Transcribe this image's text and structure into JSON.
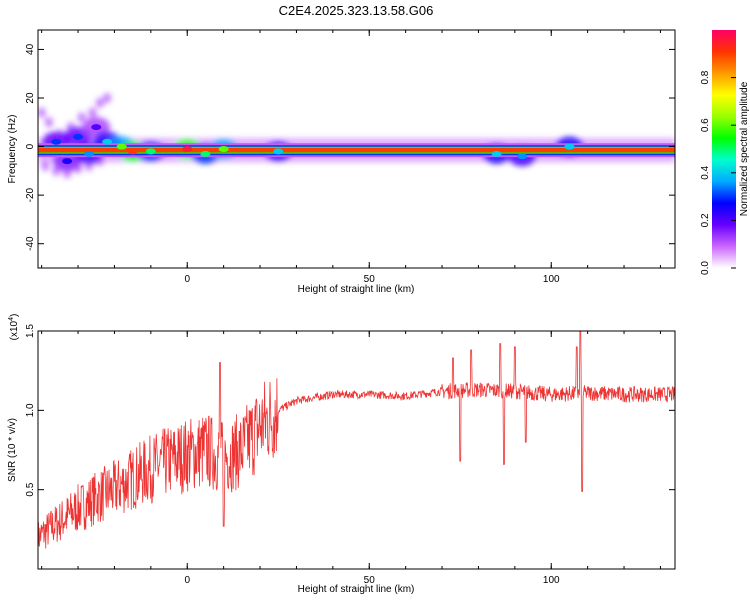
{
  "title": "C2E4.2025.323.13.58.G06",
  "chart_data": [
    {
      "type": "heatmap",
      "xlabel": "Height of straight line (km)",
      "ylabel": "Frequency (Hz)",
      "xlim": [
        -41,
        134
      ],
      "ylim": [
        -50,
        48
      ],
      "xticks": [
        0,
        50,
        100
      ],
      "yticks": [
        -40,
        -20,
        0,
        20,
        40
      ],
      "colorbar": {
        "label": "Normalized spectral amplitude",
        "range": [
          0,
          1
        ],
        "ticks": [
          0.0,
          0.2,
          0.4,
          0.6,
          0.8
        ],
        "colors": [
          "#ffffff",
          "#cc66ff",
          "#6600ff",
          "#0000ff",
          "#00aaff",
          "#00ffcc",
          "#00ff00",
          "#99ff00",
          "#ffff00",
          "#ff9900",
          "#ff3300",
          "#ff0066"
        ]
      },
      "ridge": {
        "frequency": -1.5,
        "x_range": [
          -41,
          134
        ]
      },
      "blobs": [
        {
          "x": -36,
          "y": 2,
          "amp": 0.3
        },
        {
          "x": -33,
          "y": -6,
          "amp": 0.25
        },
        {
          "x": -30,
          "y": 4,
          "amp": 0.3
        },
        {
          "x": -27,
          "y": -3,
          "amp": 0.35
        },
        {
          "x": -25,
          "y": 8,
          "amp": 0.2
        },
        {
          "x": -22,
          "y": 2,
          "amp": 0.4
        },
        {
          "x": -18,
          "y": 0,
          "amp": 0.6
        },
        {
          "x": -15,
          "y": -2,
          "amp": 0.9
        },
        {
          "x": -10,
          "y": -2,
          "amp": 0.5
        },
        {
          "x": 0,
          "y": -1,
          "amp": 0.95
        },
        {
          "x": 5,
          "y": -3,
          "amp": 0.5
        },
        {
          "x": 10,
          "y": -1,
          "amp": 0.6
        },
        {
          "x": 25,
          "y": -2,
          "amp": 0.4
        },
        {
          "x": 85,
          "y": -3,
          "amp": 0.4
        },
        {
          "x": 92,
          "y": -4,
          "amp": 0.35
        },
        {
          "x": 105,
          "y": 0,
          "amp": 0.4
        }
      ],
      "scatter_noise": [
        {
          "x": -40,
          "y": 14
        },
        {
          "x": -38,
          "y": 10
        },
        {
          "x": -35,
          "y": 5
        },
        {
          "x": -32,
          "y": 8
        },
        {
          "x": -29,
          "y": 12
        },
        {
          "x": -26,
          "y": 14
        },
        {
          "x": -24,
          "y": 18
        },
        {
          "x": -22,
          "y": 20
        },
        {
          "x": -39,
          "y": -8
        },
        {
          "x": -36,
          "y": -10
        },
        {
          "x": -33,
          "y": -11
        },
        {
          "x": -30,
          "y": -9
        },
        {
          "x": -27,
          "y": -8
        },
        {
          "x": -24,
          "y": -6
        }
      ]
    },
    {
      "type": "line",
      "xlabel": "Height of straight line (km)",
      "ylabel": "SNR (10 * v/v)",
      "scale_note": "(x10",
      "scale_exponent": "4",
      "scale_close": ")",
      "xlim": [
        -41,
        134
      ],
      "ylim": [
        0,
        1.5
      ],
      "xticks": [
        0,
        50,
        100
      ],
      "yticks": [
        0.5,
        1.0,
        1.5
      ],
      "ytick_labels": [
        "0.5",
        "1.0",
        "1.5"
      ],
      "color": "#ee3333",
      "envelope": [
        {
          "x": -41,
          "y": 0.2
        },
        {
          "x": -35,
          "y": 0.3
        },
        {
          "x": -30,
          "y": 0.38
        },
        {
          "x": -25,
          "y": 0.45
        },
        {
          "x": -20,
          "y": 0.5
        },
        {
          "x": -15,
          "y": 0.57
        },
        {
          "x": -10,
          "y": 0.63
        },
        {
          "x": -5,
          "y": 0.68
        },
        {
          "x": 0,
          "y": 0.72
        },
        {
          "x": 5,
          "y": 0.75
        },
        {
          "x": 10,
          "y": 0.7
        },
        {
          "x": 15,
          "y": 0.75
        },
        {
          "x": 20,
          "y": 0.9
        },
        {
          "x": 25,
          "y": 1.0
        },
        {
          "x": 30,
          "y": 1.06
        },
        {
          "x": 40,
          "y": 1.1
        },
        {
          "x": 50,
          "y": 1.1
        },
        {
          "x": 60,
          "y": 1.09
        },
        {
          "x": 70,
          "y": 1.12
        },
        {
          "x": 80,
          "y": 1.13
        },
        {
          "x": 90,
          "y": 1.12
        },
        {
          "x": 100,
          "y": 1.1
        },
        {
          "x": 110,
          "y": 1.11
        },
        {
          "x": 120,
          "y": 1.1
        },
        {
          "x": 134,
          "y": 1.1
        }
      ],
      "spikes": [
        {
          "x": 9,
          "y": 1.3
        },
        {
          "x": 10,
          "y": 0.27
        },
        {
          "x": 73,
          "y": 1.33
        },
        {
          "x": 75,
          "y": 0.68
        },
        {
          "x": 78,
          "y": 1.38
        },
        {
          "x": 86,
          "y": 1.42
        },
        {
          "x": 87,
          "y": 0.66
        },
        {
          "x": 90,
          "y": 1.4
        },
        {
          "x": 93,
          "y": 0.8
        },
        {
          "x": 107,
          "y": 1.4
        },
        {
          "x": 108,
          "y": 1.5
        },
        {
          "x": 108.5,
          "y": 0.49
        }
      ]
    }
  ]
}
